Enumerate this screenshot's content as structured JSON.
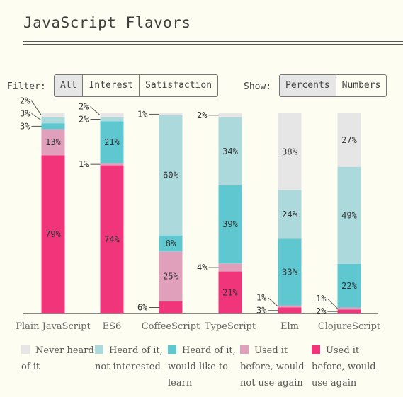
{
  "title": "JavaScript Flavors",
  "filter": {
    "label": "Filter:",
    "options": [
      "All",
      "Interest",
      "Satisfaction"
    ],
    "active": 0
  },
  "show": {
    "label": "Show:",
    "options": [
      "Percents",
      "Numbers"
    ],
    "active": 0
  },
  "colors": {
    "never_heard": "#e6e6e6",
    "not_interested": "#acd9dc",
    "would_like": "#5ec7cf",
    "not_use_again": "#e09fbb",
    "use_again": "#f0357a"
  },
  "chart_data": {
    "type": "bar",
    "stacked": true,
    "normalized": true,
    "categories": [
      "Plain JavaScript",
      "ES6",
      "CoffeeScript",
      "TypeScript",
      "Elm",
      "ClojureScript"
    ],
    "series": [
      {
        "key": "use_again",
        "name": "Used it before, would use again",
        "values": [
          79,
          74,
          6,
          21,
          3,
          2
        ]
      },
      {
        "key": "not_use_again",
        "name": "Used it before, would not use again",
        "values": [
          13,
          1,
          25,
          4,
          1,
          1
        ]
      },
      {
        "key": "would_like",
        "name": "Heard of it, would like to learn",
        "values": [
          3,
          21,
          8,
          39,
          33,
          22
        ]
      },
      {
        "key": "not_interested",
        "name": "Heard of it, not interested",
        "values": [
          3,
          2,
          60,
          34,
          24,
          49
        ]
      },
      {
        "key": "never_heard",
        "name": "Never heard of it",
        "values": [
          2,
          2,
          1,
          2,
          38,
          27
        ]
      }
    ],
    "value_suffix": "%",
    "ylim": [
      0,
      100
    ]
  },
  "legend": [
    {
      "key": "never_heard",
      "lines": [
        "Never heard",
        "of it"
      ]
    },
    {
      "key": "not_interested",
      "lines": [
        "Heard of it,",
        "not interested"
      ]
    },
    {
      "key": "would_like",
      "lines": [
        "Heard of it,",
        "would like to",
        "learn"
      ]
    },
    {
      "key": "not_use_again",
      "lines": [
        "Used it",
        "before, would",
        "not use again"
      ]
    },
    {
      "key": "use_again",
      "lines": [
        "Used it",
        "before, would",
        "use again"
      ]
    }
  ]
}
